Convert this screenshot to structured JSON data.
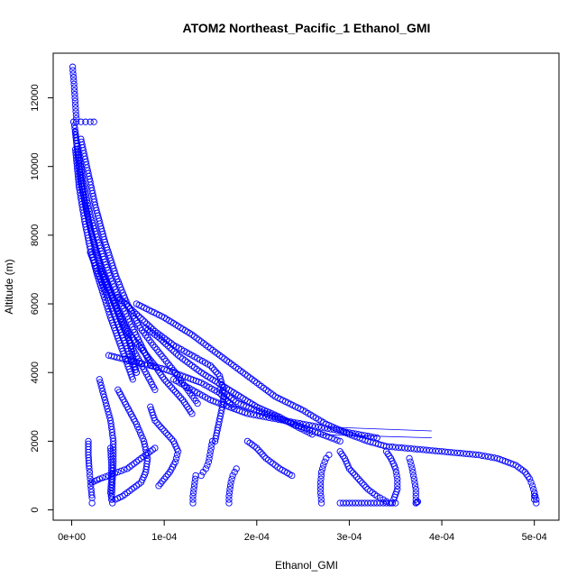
{
  "chart_data": {
    "type": "scatter",
    "title": "ATOM2 Northeast_Pacific_1 Ethanol_GMI",
    "xlabel": "Ethanol_GMI",
    "ylabel": "Altitude (m)",
    "xlim": [
      -2e-05,
      0.0005266
    ],
    "ylim": [
      -300,
      13300
    ],
    "x_ticks": [
      0,
      0.0001,
      0.0002,
      0.0003,
      0.0004,
      0.0005
    ],
    "x_tick_labels": [
      "0e+00",
      "1e-04",
      "2e-04",
      "3e-04",
      "4e-04",
      "5e-04"
    ],
    "y_ticks": [
      0,
      2000,
      4000,
      6000,
      8000,
      10000,
      12000
    ],
    "y_tick_labels": [
      "0",
      "2000",
      "4000",
      "6000",
      "8000",
      "10000",
      "12000"
    ],
    "marker": "open-circle",
    "color": "#0000ff",
    "grid": false,
    "series": [
      {
        "x": [
          1e-06,
          1.2e-06,
          1.5e-06,
          2e-06,
          2.5e-06,
          3e-06,
          3.5e-06,
          4e-06,
          4.5e-06,
          5e-06
        ],
        "y": [
          12900,
          12800,
          12700,
          12600,
          12400,
          12200,
          12000,
          11800,
          11600,
          11400
        ]
      },
      {
        "x": [
          2e-06,
          5e-06,
          1e-05,
          1.5e-05,
          2e-05,
          2.4e-05
        ],
        "y": [
          11300,
          11300,
          11300,
          11300,
          11300,
          11300
        ]
      },
      {
        "x": [
          3e-06,
          6e-06,
          1e-05,
          1.6e-05,
          2.2e-05,
          3e-05,
          4e-05,
          5e-05,
          6e-05,
          6.5e-05,
          7e-05
        ],
        "y": [
          11200,
          10500,
          9500,
          8700,
          8000,
          7200,
          6500,
          5800,
          5200,
          4600,
          4000
        ]
      },
      {
        "x": [
          4e-06,
          8e-06,
          1.4e-05,
          2e-05,
          2.8e-05,
          3.6e-05,
          4.6e-05,
          5.6e-05,
          6.6e-05,
          7.8e-05,
          9e-05
        ],
        "y": [
          11000,
          10000,
          9000,
          8200,
          7400,
          6700,
          6000,
          5300,
          4700,
          4100,
          3500
        ]
      },
      {
        "x": [
          6e-06,
          1.2e-05,
          2e-05,
          3e-05,
          4e-05,
          5.2e-05,
          6.4e-05,
          7.5e-05,
          8.6e-05
        ],
        "y": [
          10600,
          9600,
          8600,
          7700,
          6900,
          6100,
          5400,
          4800,
          4200
        ]
      },
      {
        "x": [
          4e-06,
          8e-06,
          1.4e-05,
          2e-05,
          2.8e-05,
          3.5e-05,
          4.2e-05,
          5e-05,
          5.8e-05,
          6.6e-05
        ],
        "y": [
          10500,
          9400,
          8400,
          7600,
          6800,
          6200,
          5600,
          5000,
          4400,
          3800
        ]
      },
      {
        "x": [
          1e-05,
          1.8e-05,
          2.6e-05,
          3.6e-05,
          4.8e-05,
          6e-05,
          7.4e-05,
          8.8e-05,
          0.0001,
          0.000112,
          0.00012,
          0.000128,
          0.000136
        ],
        "y": [
          10800,
          9800,
          8800,
          7800,
          6800,
          6000,
          5300,
          4800,
          4400,
          4000,
          3700,
          3400,
          3100
        ]
      },
      {
        "x": [
          5e-05,
          7e-05,
          9e-05,
          0.00011,
          0.00013,
          0.00015,
          0.00016,
          0.000165,
          0.000162,
          0.000158,
          0.000155
        ],
        "y": [
          6200,
          5700,
          5200,
          4800,
          4500,
          4200,
          3900,
          3400,
          2900,
          2400,
          2000
        ]
      },
      {
        "x": [
          3e-05,
          4e-05,
          5e-05,
          6e-05,
          7.5e-05,
          9e-05,
          0.0001,
          0.00011,
          0.00012,
          0.00013
        ],
        "y": [
          7000,
          6400,
          5800,
          5200,
          4700,
          4200,
          3800,
          3500,
          3200,
          2800
        ]
      },
      {
        "x": [
          2e-05,
          3e-05,
          4e-05,
          5e-05,
          6e-05,
          7e-05
        ],
        "y": [
          7500,
          6800,
          6100,
          5400,
          4700,
          4000
        ]
      },
      {
        "x": [
          4e-05,
          5.5e-05,
          7e-05,
          8.5e-05,
          0.0001,
          0.00012,
          0.00014,
          0.00016,
          0.000175
        ],
        "y": [
          4500,
          4400,
          4300,
          4200,
          4100,
          3900,
          3700,
          3400,
          3000
        ]
      },
      {
        "x": [
          8e-05,
          9.5e-05,
          0.000115,
          0.00014,
          0.00017,
          0.0002,
          0.000225,
          0.000245,
          0.00026
        ],
        "y": [
          5300,
          5000,
          4500,
          4000,
          3500,
          3000,
          2700,
          2400,
          2200
        ]
      },
      {
        "x": [
          7e-05,
          0.0001,
          0.00013,
          0.00016,
          0.00019,
          0.00022,
          0.00025,
          0.000275,
          0.0003,
          0.00032,
          0.00034,
          0.00036,
          0.00038,
          0.0004,
          0.00042,
          0.00044,
          0.00046,
          0.00048,
          0.00049,
          0.000495,
          0.000498,
          0.0005,
          0.0005
        ],
        "y": [
          6000,
          5600,
          5100,
          4500,
          3900,
          3300,
          2900,
          2500,
          2200,
          2000,
          1850,
          1800,
          1750,
          1700,
          1650,
          1600,
          1500,
          1300,
          1100,
          900,
          700,
          500,
          300
        ]
      },
      {
        "x": [
          0.00011,
          0.00013,
          0.00015,
          0.00017,
          0.00019,
          0.00021,
          0.00023,
          0.00025,
          0.00027,
          0.00029,
          0.00031,
          0.00033
        ],
        "y": [
          3800,
          3500,
          3200,
          3000,
          2800,
          2700,
          2600,
          2500,
          2400,
          2300,
          2200,
          2100
        ]
      },
      {
        "x": [
          0.00016,
          0.00017,
          0.00018,
          0.0002,
          0.00022,
          0.00024,
          0.00026,
          0.000275,
          0.00029
        ],
        "y": [
          3500,
          3300,
          3100,
          2900,
          2700,
          2500,
          2300,
          2150,
          2000
        ]
      },
      {
        "x": [
          1.8e-05,
          1.8e-05,
          1.9e-05,
          2e-05,
          2.1e-05,
          2.2e-05,
          2.2e-05
        ],
        "y": [
          2000,
          1600,
          1200,
          900,
          600,
          350,
          200
        ]
      },
      {
        "x": [
          3e-05,
          3.6e-05,
          4.2e-05,
          4.5e-05,
          4.5e-05,
          4.4e-05,
          4.3e-05
        ],
        "y": [
          3800,
          3200,
          2600,
          2000,
          1400,
          800,
          300
        ]
      },
      {
        "x": [
          4.2e-05,
          4.3e-05,
          4.3e-05,
          4.2e-05,
          4.4e-05
        ],
        "y": [
          1800,
          1300,
          900,
          500,
          200
        ]
      },
      {
        "x": [
          2.2e-05,
          3e-05,
          4e-05,
          5e-05,
          6e-05,
          7e-05,
          8e-05,
          9e-05
        ],
        "y": [
          800,
          900,
          1000,
          1100,
          1200,
          1400,
          1600,
          1800
        ]
      },
      {
        "x": [
          5e-05,
          6e-05,
          7e-05,
          7.8e-05,
          8.2e-05,
          8e-05,
          7.5e-05,
          6.5e-05,
          5.5e-05,
          4.7e-05
        ],
        "y": [
          3500,
          3000,
          2500,
          2000,
          1500,
          1100,
          800,
          600,
          400,
          300
        ]
      },
      {
        "x": [
          8.5e-05,
          9e-05,
          0.0001,
          0.00011,
          0.000115,
          0.000112,
          0.000106,
          0.0001,
          9.4e-05
        ],
        "y": [
          3000,
          2600,
          2300,
          2000,
          1700,
          1400,
          1100,
          900,
          700
        ]
      },
      {
        "x": [
          0.000131,
          0.000131,
          0.000132,
          0.000133,
          0.000134
        ],
        "y": [
          200,
          400,
          600,
          800,
          1000
        ]
      },
      {
        "x": [
          0.00014,
          0.000142,
          0.000145,
          0.000148,
          0.00015,
          0.000152
        ],
        "y": [
          1000,
          1100,
          1200,
          1400,
          1700,
          2000
        ]
      },
      {
        "x": [
          0.00017,
          0.00017,
          0.000171,
          0.000172,
          0.000174,
          0.000176,
          0.000178
        ],
        "y": [
          200,
          400,
          600,
          800,
          1000,
          1100,
          1200
        ]
      },
      {
        "x": [
          0.00019,
          0.0002,
          0.00021,
          0.000225,
          0.000238
        ],
        "y": [
          2000,
          1800,
          1500,
          1200,
          1000
        ]
      },
      {
        "x": [
          0.00027,
          0.000269,
          0.000269,
          0.00027,
          0.000272,
          0.000275,
          0.000278
        ],
        "y": [
          200,
          500,
          800,
          1100,
          1300,
          1500,
          1600
        ]
      },
      {
        "x": [
          0.00029,
          0.000295,
          0.0003,
          0.00031,
          0.00032,
          0.00033,
          0.00034,
          0.000345
        ],
        "y": [
          1700,
          1500,
          1200,
          900,
          600,
          400,
          250,
          200
        ]
      },
      {
        "x": [
          0.00029,
          0.0003,
          0.00031,
          0.00032,
          0.00033,
          0.00034,
          0.00035
        ],
        "y": [
          200,
          200,
          200,
          200,
          200,
          200,
          200
        ]
      },
      {
        "x": [
          0.00034,
          0.000345,
          0.00035,
          0.000352,
          0.000352,
          0.000348
        ],
        "y": [
          1700,
          1500,
          1200,
          900,
          600,
          300
        ]
      },
      {
        "x": [
          0.000365,
          0.000368,
          0.00037,
          0.000372,
          0.000372,
          0.000372
        ],
        "y": [
          1500,
          1200,
          900,
          600,
          400,
          200
        ]
      },
      {
        "x": [
          0.000372,
          0.000373,
          0.000374
        ],
        "y": [
          200,
          220,
          240
        ]
      },
      {
        "x": [
          0.0005,
          0.000501,
          0.000502,
          0.000502
        ],
        "y": [
          500,
          400,
          300,
          200
        ]
      }
    ],
    "connectors": [
      {
        "x": [
          0.00029,
          0.000389
        ],
        "y": [
          2400,
          2300
        ]
      },
      {
        "x": [
          0.00026,
          0.000389
        ],
        "y": [
          2200,
          2100
        ]
      },
      {
        "x": [
          2e-05,
          4e-05
        ],
        "y": [
          800,
          900
        ]
      }
    ]
  }
}
